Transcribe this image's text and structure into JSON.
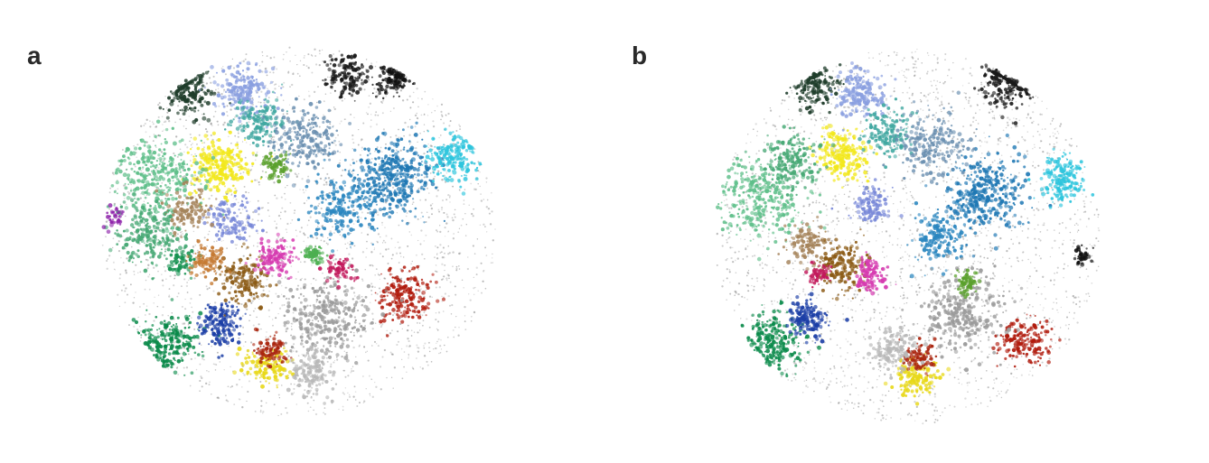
{
  "figure": {
    "panels": [
      {
        "label": "a"
      },
      {
        "label": "b"
      }
    ]
  },
  "chart_data": [
    {
      "type": "scatter",
      "panel": "a",
      "title": "",
      "xlabel": "",
      "ylabel": "",
      "axes_visible": false,
      "grid": false,
      "legend": "none",
      "seed": 11,
      "background_color": "#888888",
      "clusters": [
        {
          "color": "#f2e81c",
          "x": 0.3,
          "y": 0.32,
          "r": 0.06,
          "n": 260
        },
        {
          "color": "#e8d818",
          "x": 0.42,
          "y": 0.86,
          "r": 0.045,
          "n": 150
        },
        {
          "color": "#0a8a4a",
          "x": 0.17,
          "y": 0.8,
          "r": 0.06,
          "n": 230
        },
        {
          "color": "#13914f",
          "x": 0.2,
          "y": 0.58,
          "r": 0.03,
          "n": 60
        },
        {
          "color": "#1b3ea6",
          "x": 0.3,
          "y": 0.75,
          "r": 0.045,
          "n": 160
        },
        {
          "color": "#8b5a14",
          "x": 0.36,
          "y": 0.63,
          "r": 0.055,
          "n": 170
        },
        {
          "color": "#d63bb0",
          "x": 0.44,
          "y": 0.57,
          "r": 0.04,
          "n": 150
        },
        {
          "color": "#b01a0c",
          "x": 0.77,
          "y": 0.67,
          "r": 0.06,
          "n": 190
        },
        {
          "color": "#a9240e",
          "x": 0.43,
          "y": 0.82,
          "r": 0.035,
          "n": 90
        },
        {
          "color": "#1f78b4",
          "x": 0.74,
          "y": 0.35,
          "r": 0.09,
          "n": 380
        },
        {
          "color": "#2a86bf",
          "x": 0.61,
          "y": 0.43,
          "r": 0.07,
          "n": 200
        },
        {
          "color": "#2dc5dd",
          "x": 0.89,
          "y": 0.3,
          "r": 0.055,
          "n": 190
        },
        {
          "color": "#1a1a1a",
          "x": 0.62,
          "y": 0.08,
          "r": 0.045,
          "n": 150
        },
        {
          "color": "#111111",
          "x": 0.74,
          "y": 0.08,
          "r": 0.04,
          "n": 130
        },
        {
          "color": "#1f3d2b",
          "x": 0.22,
          "y": 0.12,
          "r": 0.05,
          "n": 170
        },
        {
          "color": "#8a9fe0",
          "x": 0.36,
          "y": 0.12,
          "r": 0.055,
          "n": 200
        },
        {
          "color": "#7888d8",
          "x": 0.33,
          "y": 0.47,
          "r": 0.05,
          "n": 130
        },
        {
          "color": "#5fbf8a",
          "x": 0.14,
          "y": 0.35,
          "r": 0.09,
          "n": 330
        },
        {
          "color": "#46a874",
          "x": 0.12,
          "y": 0.5,
          "r": 0.07,
          "n": 220
        },
        {
          "color": "#a5835a",
          "x": 0.22,
          "y": 0.44,
          "r": 0.05,
          "n": 130
        },
        {
          "color": "#c57a33",
          "x": 0.27,
          "y": 0.58,
          "r": 0.04,
          "n": 100
        },
        {
          "color": "#9a9a9a",
          "x": 0.57,
          "y": 0.73,
          "r": 0.09,
          "n": 300
        },
        {
          "color": "#b8b8b8",
          "x": 0.53,
          "y": 0.88,
          "r": 0.05,
          "n": 140
        },
        {
          "color": "#5aa02c",
          "x": 0.44,
          "y": 0.32,
          "r": 0.03,
          "n": 90
        },
        {
          "color": "#3fa7a0",
          "x": 0.4,
          "y": 0.2,
          "r": 0.05,
          "n": 150
        },
        {
          "color": "#c2185b",
          "x": 0.6,
          "y": 0.6,
          "r": 0.03,
          "n": 70
        },
        {
          "color": "#8e24aa",
          "x": 0.03,
          "y": 0.46,
          "r": 0.02,
          "n": 40
        },
        {
          "color": "#4caf50",
          "x": 0.54,
          "y": 0.56,
          "r": 0.02,
          "n": 60
        },
        {
          "color": "#6a8fb0",
          "x": 0.52,
          "y": 0.25,
          "r": 0.07,
          "n": 220
        }
      ]
    },
    {
      "type": "scatter",
      "panel": "b",
      "title": "",
      "xlabel": "",
      "ylabel": "",
      "axes_visible": false,
      "grid": false,
      "legend": "none",
      "seed": 29,
      "background_color": "#888888",
      "clusters": [
        {
          "color": "#f2e81c",
          "x": 0.33,
          "y": 0.28,
          "r": 0.055,
          "n": 230
        },
        {
          "color": "#e8d818",
          "x": 0.52,
          "y": 0.88,
          "r": 0.045,
          "n": 150
        },
        {
          "color": "#0a8a4a",
          "x": 0.15,
          "y": 0.78,
          "r": 0.06,
          "n": 230
        },
        {
          "color": "#1b3ea6",
          "x": 0.24,
          "y": 0.72,
          "r": 0.04,
          "n": 150
        },
        {
          "color": "#8b5a14",
          "x": 0.33,
          "y": 0.58,
          "r": 0.055,
          "n": 170
        },
        {
          "color": "#d63bb0",
          "x": 0.4,
          "y": 0.6,
          "r": 0.035,
          "n": 130
        },
        {
          "color": "#b01a0c",
          "x": 0.8,
          "y": 0.78,
          "r": 0.055,
          "n": 180
        },
        {
          "color": "#a9240e",
          "x": 0.53,
          "y": 0.82,
          "r": 0.035,
          "n": 90
        },
        {
          "color": "#1f78b4",
          "x": 0.7,
          "y": 0.38,
          "r": 0.085,
          "n": 360
        },
        {
          "color": "#2a86bf",
          "x": 0.58,
          "y": 0.5,
          "r": 0.06,
          "n": 180
        },
        {
          "color": "#2dc5dd",
          "x": 0.9,
          "y": 0.35,
          "r": 0.05,
          "n": 180
        },
        {
          "color": "#1a1a1a",
          "x": 0.76,
          "y": 0.09,
          "r": 0.06,
          "n": 200
        },
        {
          "color": "#1f3d2b",
          "x": 0.26,
          "y": 0.1,
          "r": 0.05,
          "n": 170
        },
        {
          "color": "#8a9fe0",
          "x": 0.38,
          "y": 0.12,
          "r": 0.05,
          "n": 190
        },
        {
          "color": "#7888d8",
          "x": 0.4,
          "y": 0.42,
          "r": 0.04,
          "n": 110
        },
        {
          "color": "#5fbf8a",
          "x": 0.12,
          "y": 0.4,
          "r": 0.09,
          "n": 330
        },
        {
          "color": "#46a874",
          "x": 0.2,
          "y": 0.3,
          "r": 0.06,
          "n": 200
        },
        {
          "color": "#a5835a",
          "x": 0.24,
          "y": 0.52,
          "r": 0.045,
          "n": 120
        },
        {
          "color": "#9a9a9a",
          "x": 0.64,
          "y": 0.7,
          "r": 0.09,
          "n": 300
        },
        {
          "color": "#b8b8b8",
          "x": 0.46,
          "y": 0.8,
          "r": 0.05,
          "n": 140
        },
        {
          "color": "#5aa02c",
          "x": 0.65,
          "y": 0.62,
          "r": 0.025,
          "n": 70
        },
        {
          "color": "#3fa7a0",
          "x": 0.45,
          "y": 0.22,
          "r": 0.05,
          "n": 150
        },
        {
          "color": "#c2185b",
          "x": 0.27,
          "y": 0.6,
          "r": 0.025,
          "n": 60
        },
        {
          "color": "#111111",
          "x": 0.95,
          "y": 0.55,
          "r": 0.02,
          "n": 40
        },
        {
          "color": "#6a8fb0",
          "x": 0.56,
          "y": 0.25,
          "r": 0.07,
          "n": 220
        }
      ]
    }
  ]
}
